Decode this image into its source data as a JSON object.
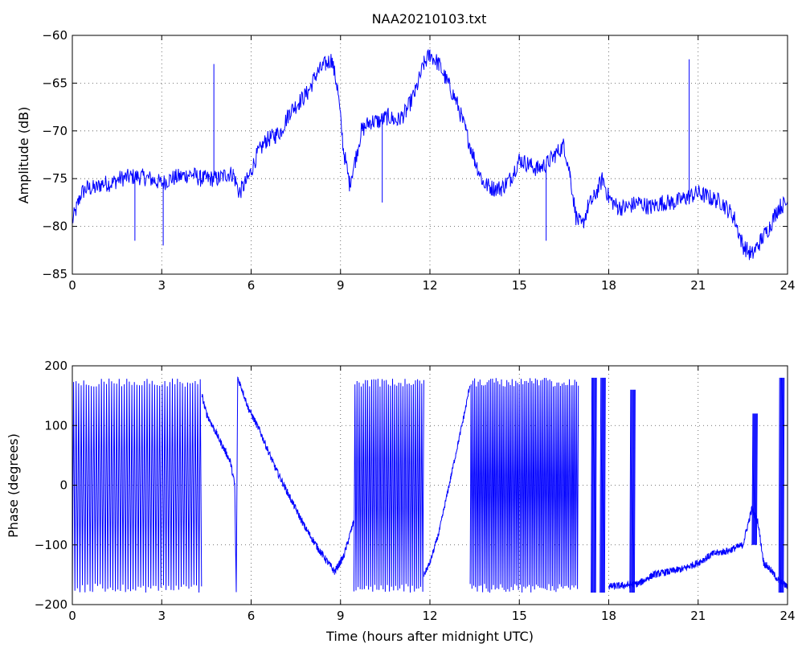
{
  "title": "NAA20210103.txt",
  "chart_data": [
    {
      "type": "line",
      "name": "amplitude",
      "ylabel": "Amplitude (dB)",
      "xlabel": "",
      "xlim": [
        0,
        24
      ],
      "ylim": [
        -85,
        -60
      ],
      "xticks": [
        0,
        3,
        6,
        9,
        12,
        15,
        18,
        21,
        24
      ],
      "yticks": [
        -60,
        -65,
        -70,
        -75,
        -80,
        -85
      ],
      "grid": true,
      "color": "#0000ff",
      "x": [
        0,
        0.1,
        0.2,
        0.3,
        0.5,
        0.8,
        1.0,
        1.3,
        1.6,
        2.0,
        2.3,
        2.6,
        3.0,
        3.3,
        3.6,
        4.0,
        4.3,
        4.6,
        4.75,
        4.9,
        5.2,
        5.4,
        5.6,
        5.9,
        6.2,
        6.5,
        6.8,
        7.0,
        7.3,
        7.6,
        7.9,
        8.2,
        8.5,
        8.7,
        8.9,
        9.1,
        9.3,
        9.5,
        9.7,
        10.0,
        10.3,
        10.6,
        10.9,
        11.2,
        11.5,
        11.8,
        12.0,
        12.3,
        12.6,
        12.9,
        13.2,
        13.5,
        13.8,
        14.1,
        14.4,
        14.7,
        15.0,
        15.3,
        15.6,
        15.9,
        16.2,
        16.5,
        16.7,
        16.9,
        17.1,
        17.3,
        17.5,
        17.8,
        18.0,
        18.3,
        18.6,
        19.0,
        19.4,
        19.8,
        20.2,
        20.6,
        21.0,
        21.4,
        21.8,
        22.2,
        22.5,
        22.8,
        23.1,
        23.4,
        23.7,
        24.0
      ],
      "y": [
        -79.5,
        -78.5,
        -77.5,
        -76.5,
        -76,
        -76,
        -75.5,
        -75.5,
        -75,
        -74.8,
        -74.8,
        -75,
        -75.5,
        -75,
        -74.8,
        -74.5,
        -75,
        -75,
        -75,
        -75,
        -74.5,
        -74.5,
        -76.5,
        -75,
        -72.5,
        -71,
        -70.5,
        -70,
        -68,
        -67,
        -66,
        -64,
        -63,
        -62.5,
        -65.5,
        -72,
        -75.5,
        -73,
        -70,
        -69,
        -69,
        -68.5,
        -69,
        -68,
        -66,
        -63,
        -62,
        -63,
        -65,
        -67,
        -70,
        -73,
        -75.5,
        -76,
        -76,
        -75,
        -73,
        -73.5,
        -74,
        -73.5,
        -72.5,
        -71.5,
        -74.5,
        -79,
        -80,
        -78,
        -77,
        -75,
        -77,
        -78,
        -78,
        -77.5,
        -78,
        -77.5,
        -77.5,
        -77,
        -76.5,
        -77,
        -77.5,
        -79,
        -82,
        -83,
        -81.5,
        -80,
        -78,
        -77.5
      ],
      "spikes": [
        {
          "x": 2.1,
          "y": -81.5
        },
        {
          "x": 3.05,
          "y": -82
        },
        {
          "x": 4.75,
          "y": -63
        },
        {
          "x": 10.4,
          "y": -77.5
        },
        {
          "x": 15.9,
          "y": -81.5
        },
        {
          "x": 20.7,
          "y": -62.5
        }
      ]
    },
    {
      "type": "line",
      "name": "phase",
      "ylabel": "Phase (degrees)",
      "xlabel": "Time (hours after midnight UTC)",
      "xlim": [
        0,
        24
      ],
      "ylim": [
        -200,
        200
      ],
      "xticks": [
        0,
        3,
        6,
        9,
        12,
        15,
        18,
        21,
        24
      ],
      "yticks": [
        200,
        100,
        0,
        -100,
        -200
      ],
      "grid": true,
      "color": "#0000ff",
      "wrap_segments": [
        [
          0.0,
          4.35,
          0.085
        ],
        [
          9.45,
          11.8,
          0.07
        ],
        [
          13.35,
          17.0,
          0.06
        ]
      ],
      "x": [
        4.35,
        4.5,
        4.7,
        4.9,
        5.1,
        5.3,
        5.45,
        5.5,
        5.55,
        5.7,
        5.9,
        6.3,
        6.8,
        7.3,
        7.8,
        8.3,
        8.8,
        9.1,
        9.45
      ],
      "y": [
        150,
        120,
        100,
        80,
        60,
        40,
        0,
        -180,
        180,
        160,
        130,
        90,
        30,
        -20,
        -70,
        -110,
        -145,
        -120,
        -60
      ],
      "x2": [
        11.8,
        12.0,
        12.3,
        12.6,
        12.9,
        13.2,
        13.35
      ],
      "y2": [
        -150,
        -130,
        -80,
        -10,
        60,
        130,
        170
      ],
      "x3": [
        18.0,
        18.5,
        19.0,
        19.5,
        20.0,
        20.5,
        21.0,
        21.5,
        22.0,
        22.5,
        22.8,
        23.0,
        23.2,
        23.4,
        23.7,
        24.0
      ],
      "y3": [
        -170,
        -168,
        -165,
        -150,
        -145,
        -140,
        -130,
        -115,
        -110,
        -100,
        -40,
        -60,
        -130,
        -140,
        -160,
        -170
      ],
      "bursts": [
        {
          "x": 17.5,
          "lo": -180,
          "hi": 180
        },
        {
          "x": 17.8,
          "lo": -180,
          "hi": 180
        },
        {
          "x": 18.8,
          "lo": -180,
          "hi": 160
        },
        {
          "x": 22.9,
          "lo": -100,
          "hi": 120
        },
        {
          "x": 23.8,
          "lo": -180,
          "hi": 180
        }
      ]
    }
  ]
}
